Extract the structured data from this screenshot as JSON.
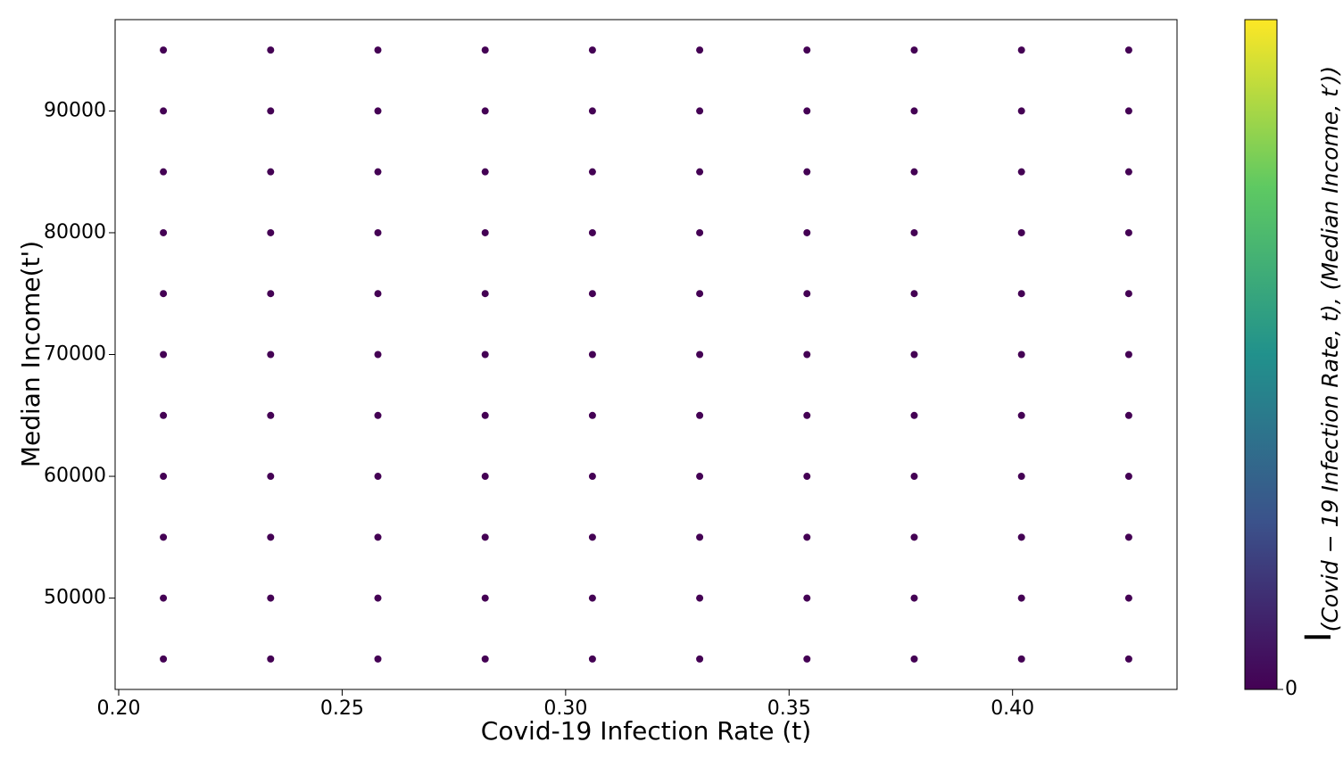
{
  "chart_data": {
    "type": "scatter",
    "x_label": "Covid-19 Infection Rate (t)",
    "y_label": "Median Income(t')",
    "xlim": [
      0.1992,
      0.4368
    ],
    "ylim": [
      42500,
      97500
    ],
    "xticks": [
      {
        "value": 0.2,
        "label": "0.20"
      },
      {
        "value": 0.25,
        "label": "0.25"
      },
      {
        "value": 0.3,
        "label": "0.30"
      },
      {
        "value": 0.35,
        "label": "0.35"
      },
      {
        "value": 0.4,
        "label": "0.40"
      }
    ],
    "yticks": [
      50000,
      60000,
      70000,
      80000,
      90000
    ],
    "grid": false,
    "series": [
      {
        "color": "#440154",
        "x": [
          0.21,
          0.21,
          0.21,
          0.21,
          0.21,
          0.21,
          0.21,
          0.21,
          0.21,
          0.21,
          0.21,
          0.234,
          0.234,
          0.234,
          0.234,
          0.234,
          0.234,
          0.234,
          0.234,
          0.234,
          0.234,
          0.234,
          0.258,
          0.258,
          0.258,
          0.258,
          0.258,
          0.258,
          0.258,
          0.258,
          0.258,
          0.258,
          0.258,
          0.282,
          0.282,
          0.282,
          0.282,
          0.282,
          0.282,
          0.282,
          0.282,
          0.282,
          0.282,
          0.282,
          0.306,
          0.306,
          0.306,
          0.306,
          0.306,
          0.306,
          0.306,
          0.306,
          0.306,
          0.306,
          0.306,
          0.33,
          0.33,
          0.33,
          0.33,
          0.33,
          0.33,
          0.33,
          0.33,
          0.33,
          0.33,
          0.33,
          0.354,
          0.354,
          0.354,
          0.354,
          0.354,
          0.354,
          0.354,
          0.354,
          0.354,
          0.354,
          0.354,
          0.378,
          0.378,
          0.378,
          0.378,
          0.378,
          0.378,
          0.378,
          0.378,
          0.378,
          0.378,
          0.378,
          0.402,
          0.402,
          0.402,
          0.402,
          0.402,
          0.402,
          0.402,
          0.402,
          0.402,
          0.402,
          0.402,
          0.426,
          0.426,
          0.426,
          0.426,
          0.426,
          0.426,
          0.426,
          0.426,
          0.426,
          0.426,
          0.426
        ],
        "values": [
          45000,
          50000,
          55000,
          60000,
          65000,
          70000,
          75000,
          80000,
          85000,
          90000,
          95000,
          45000,
          50000,
          55000,
          60000,
          65000,
          70000,
          75000,
          80000,
          85000,
          90000,
          95000,
          45000,
          50000,
          55000,
          60000,
          65000,
          70000,
          75000,
          80000,
          85000,
          90000,
          95000,
          45000,
          50000,
          55000,
          60000,
          65000,
          70000,
          75000,
          80000,
          85000,
          90000,
          95000,
          45000,
          50000,
          55000,
          60000,
          65000,
          70000,
          75000,
          80000,
          85000,
          90000,
          95000,
          45000,
          50000,
          55000,
          60000,
          65000,
          70000,
          75000,
          80000,
          85000,
          90000,
          95000,
          45000,
          50000,
          55000,
          60000,
          65000,
          70000,
          75000,
          80000,
          85000,
          90000,
          95000,
          45000,
          50000,
          55000,
          60000,
          65000,
          70000,
          75000,
          80000,
          85000,
          90000,
          95000,
          45000,
          50000,
          55000,
          60000,
          65000,
          70000,
          75000,
          80000,
          85000,
          90000,
          95000,
          45000,
          50000,
          55000,
          60000,
          65000,
          70000,
          75000,
          80000,
          85000,
          90000,
          95000
        ]
      }
    ],
    "colorbar": {
      "symbol": "I",
      "subscript": "(Covid − 19 Infection Rate, t), (Median Income, t′))",
      "ticks": [
        0
      ],
      "colormap": [
        "#440154",
        "#3b528b",
        "#21918c",
        "#5ec962",
        "#fde725"
      ]
    }
  }
}
